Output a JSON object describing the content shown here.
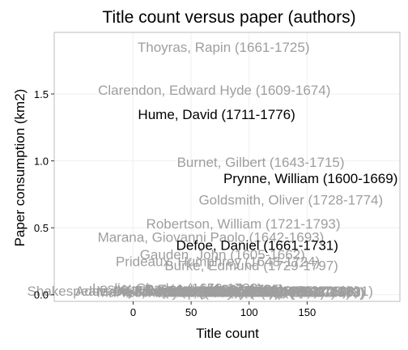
{
  "chart_data": {
    "type": "scatter",
    "title": "Title count versus paper (authors)",
    "xlabel": "Title count",
    "ylabel": "Paper consumption (km2)",
    "xlim": [
      -68,
      230
    ],
    "ylim": [
      -0.05,
      1.96
    ],
    "xticks": [
      0,
      50,
      100,
      150
    ],
    "yticks": [
      0.0,
      0.5,
      1.0,
      1.5
    ],
    "xtick_labels": [
      "0",
      "50",
      "100",
      "150"
    ],
    "ytick_labels": [
      "0.0",
      "0.5",
      "1.0",
      "1.5"
    ],
    "grid": true,
    "colors": {
      "highlight": "#000000",
      "muted": "#9e9e9e",
      "panel_border": "#bdbdbd",
      "grid": "#efefef"
    },
    "points": [
      {
        "label": "Thoyras, Rapin (1661-1725)",
        "x": 78,
        "y": 1.85,
        "highlight": false
      },
      {
        "label": "Clarendon, Edward Hyde (1609-1674)",
        "x": 70,
        "y": 1.53,
        "highlight": false
      },
      {
        "label": "Hume, David (1711-1776)",
        "x": 72,
        "y": 1.35,
        "highlight": true
      },
      {
        "label": "Burnet, Gilbert (1643-1715)",
        "x": 110,
        "y": 0.99,
        "highlight": false
      },
      {
        "label": "Prynne, William (1600-1669)",
        "x": 153,
        "y": 0.87,
        "highlight": true
      },
      {
        "label": "Goldsmith, Oliver (1728-1774)",
        "x": 136,
        "y": 0.71,
        "highlight": false
      },
      {
        "label": "Robertson, William (1721-1793)",
        "x": 95,
        "y": 0.53,
        "highlight": false
      },
      {
        "label": "Marana, Giovanni Paolo (1642-1693)",
        "x": 67,
        "y": 0.43,
        "highlight": false
      },
      {
        "label": "Defoe, Daniel (1661-1731)",
        "x": 107,
        "y": 0.37,
        "highlight": true
      },
      {
        "label": "Gauden, John (1605-1662)",
        "x": 77,
        "y": 0.3,
        "highlight": false
      },
      {
        "label": "Prideaux, Humphrey (1648-1724)",
        "x": 73,
        "y": 0.25,
        "highlight": false
      },
      {
        "label": "Burke, Edmund (1729-1797)",
        "x": 102,
        "y": 0.22,
        "highlight": false
      },
      {
        "label": "Leslie, Charles (1650-1722)",
        "x": 38,
        "y": 0.05,
        "highlight": false
      },
      {
        "label": "Ward, Edward (1667-1731)",
        "x": 58,
        "y": 0.04,
        "highlight": false
      },
      {
        "label": "Shakespeare, William (1564-1616)",
        "x": 0,
        "y": 0.03,
        "highlight": false
      },
      {
        "label": "Addison, Joseph (1672-1719)",
        "x": 28,
        "y": 0.03,
        "highlight": false
      },
      {
        "label": "Dryden, John (1631-1700)",
        "x": 52,
        "y": 0.03,
        "highlight": false
      },
      {
        "label": "Swift, Jonathan (1667-1745)",
        "x": 85,
        "y": 0.03,
        "highlight": false
      },
      {
        "label": "Baxter, Richard (1615-1691)",
        "x": 100,
        "y": 0.02,
        "highlight": false
      },
      {
        "label": "Steele, Richard (1672-1729)",
        "x": 110,
        "y": 0.03,
        "highlight": false
      },
      {
        "label": "Tillotson, John (1630-1694)",
        "x": 75,
        "y": 0.03,
        "highlight": false
      },
      {
        "label": "Taylor, Jeremy (1613-1667)",
        "x": 93,
        "y": 0.02,
        "highlight": false
      },
      {
        "label": "Locke, John (1632-1704)",
        "x": 60,
        "y": 0.02,
        "highlight": false
      },
      {
        "label": "Penn, William (1644-1718)",
        "x": 118,
        "y": 0.03,
        "highlight": false
      },
      {
        "label": "Marvell, Andrew (1621-1678)",
        "x": 45,
        "y": 0.02,
        "highlight": false
      },
      {
        "label": "Milton, John (1608-1674)",
        "x": 88,
        "y": 0.03,
        "highlight": false
      },
      {
        "label": "Bunyan, John (1628-1688)",
        "x": 130,
        "y": 0.02,
        "highlight": false
      },
      {
        "label": "Fox, George (1624-1691)",
        "x": 140,
        "y": 0.03,
        "highlight": false
      },
      {
        "label": "Pope, Alexander (1688-1744)",
        "x": 110,
        "y": 0.02,
        "highlight": false
      },
      {
        "label": "Walton, Izaak (1593-1683)",
        "x": 125,
        "y": 0.03,
        "highlight": false
      },
      {
        "label": "Ray, John (1627-1705)",
        "x": 70,
        "y": 0.04,
        "highlight": false
      },
      {
        "label": "Hobbes, Thomas (1588-1679)",
        "x": 120,
        "y": 0.02,
        "highlight": false
      }
    ]
  }
}
